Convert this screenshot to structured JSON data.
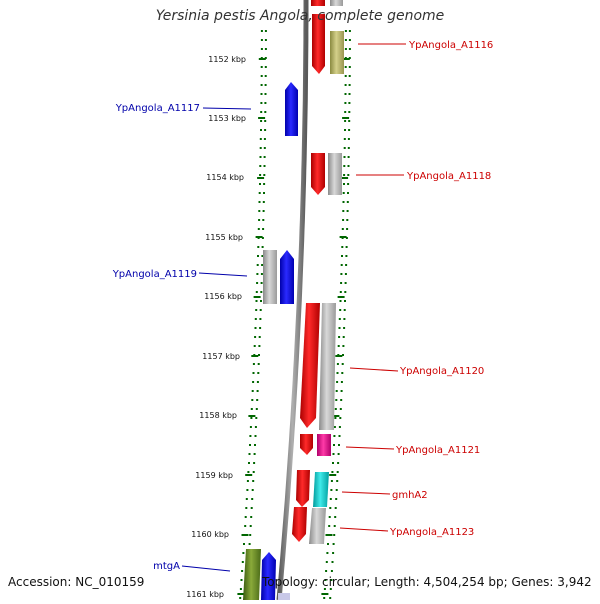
{
  "title": "Yersinia pestis Angola, complete genome",
  "footer": {
    "accession": "Accession: NC_010159",
    "info": "Topology: circular; Length: 4,504,254 bp; Genes: 3,942"
  },
  "colors": {
    "forward": "#ff0000",
    "reverse": "#0000ff",
    "label_forward": "#cc0000",
    "label_reverse": "#0000aa",
    "backbone": "#808080",
    "tick": "#006600"
  },
  "ticks": [
    "1152 kbp",
    "1153 kbp",
    "1154 kbp",
    "1155 kbp",
    "1156 kbp",
    "1157 kbp",
    "1158 kbp",
    "1159 kbp",
    "1160 kbp",
    "1161 kbp"
  ],
  "labels": {
    "right": [
      "YpAngola_A1116",
      "YpAngola_A1118",
      "YpAngola_A1120",
      "YpAngola_A1121",
      "gmhA2",
      "YpAngola_A1123"
    ],
    "left": [
      "YpAngola_A1117",
      "YpAngola_A1119",
      "mtgA"
    ]
  }
}
